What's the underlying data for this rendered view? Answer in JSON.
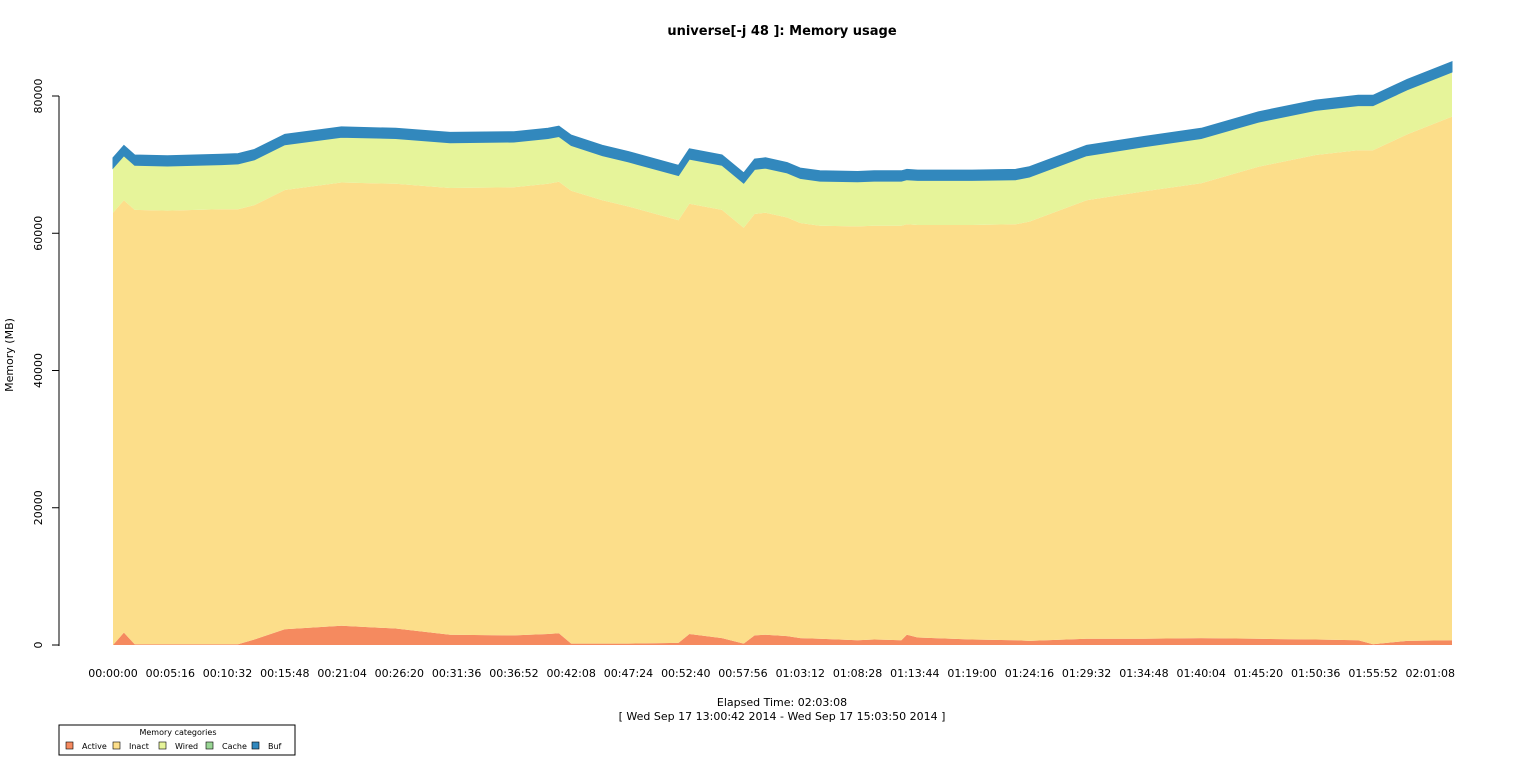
{
  "chart_data": {
    "type": "area",
    "stacked": true,
    "title": "universe[-j 48  ]: Memory usage",
    "ylabel": "Memory (MB)",
    "xlabel": "Elapsed Time: 02:03:08",
    "subtitle": "[ Wed Sep 17 13:00:42 2014 - Wed Sep 17 15:03:50 2014 ]",
    "ylim": [
      0,
      85000
    ],
    "yticks": [
      0,
      20000,
      40000,
      60000,
      80000
    ],
    "x_range_minutes": [
      0,
      123.13
    ],
    "xtick_minutes": [
      0,
      5.27,
      10.53,
      15.8,
      21.07,
      26.33,
      31.6,
      36.87,
      42.13,
      47.4,
      52.67,
      57.93,
      63.2,
      68.47,
      73.73,
      79,
      84.27,
      89.53,
      94.8,
      100.07,
      105.33,
      110.6,
      115.87,
      121.13
    ],
    "xtick_labels": [
      "00:00:00",
      "00:05:16",
      "00:10:32",
      "00:15:48",
      "00:21:04",
      "00:26:20",
      "00:31:36",
      "00:36:52",
      "00:42:08",
      "00:47:24",
      "00:52:40",
      "00:57:56",
      "01:03:12",
      "01:08:28",
      "01:13:44",
      "01:19:00",
      "01:24:16",
      "01:29:32",
      "01:34:48",
      "01:40:04",
      "01:45:20",
      "01:50:36",
      "01:55:52",
      "02:01:08"
    ],
    "x_minutes": [
      0,
      1,
      2,
      5,
      10,
      11.5,
      13,
      15.8,
      21,
      26,
      31,
      36.87,
      40,
      41,
      42.13,
      45,
      47.4,
      52,
      53,
      56,
      58,
      59,
      60,
      62,
      63.2,
      65,
      68.47,
      70,
      72.5,
      73,
      74,
      79,
      83,
      84.27,
      89.53,
      94.8,
      100.07,
      105.33,
      110.6,
      114.5,
      115.87,
      119,
      123.13
    ],
    "series": [
      {
        "name": "Active",
        "color": "#F58A5F",
        "values": [
          0,
          1800,
          100,
          100,
          100,
          100,
          800,
          2300,
          2800,
          2400,
          1500,
          1400,
          1600,
          1700,
          200,
          200,
          200,
          300,
          1600,
          1000,
          200,
          1400,
          1500,
          1300,
          1000,
          900,
          700,
          800,
          700,
          1500,
          1100,
          800,
          700,
          600,
          900,
          900,
          1000,
          900,
          800,
          700,
          100,
          600,
          700
        ]
      },
      {
        "name": "Inact",
        "color": "#FCDE8A",
        "values": [
          63000,
          63000,
          63300,
          63200,
          63400,
          63400,
          63300,
          64000,
          64600,
          64800,
          65100,
          65300,
          65600,
          65800,
          66000,
          64600,
          63700,
          61600,
          62700,
          62400,
          60600,
          61400,
          61500,
          61000,
          60500,
          60200,
          60300,
          60300,
          60400,
          59800,
          60100,
          60400,
          60600,
          61100,
          63900,
          65200,
          66300,
          68800,
          70600,
          71400,
          72000,
          73800,
          76300
        ]
      },
      {
        "name": "Wired",
        "color": "#E6F49A",
        "values": [
          6500,
          6500,
          6500,
          6500,
          6500,
          6600,
          6600,
          6600,
          6600,
          6600,
          6600,
          6600,
          6600,
          6600,
          6600,
          6500,
          6500,
          6500,
          6500,
          6500,
          6500,
          6500,
          6500,
          6500,
          6500,
          6500,
          6500,
          6500,
          6500,
          6500,
          6500,
          6500,
          6500,
          6500,
          6500,
          6500,
          6500,
          6500,
          6500,
          6500,
          6500,
          6500,
          6500
        ]
      },
      {
        "name": "Cache",
        "color": "#99D594",
        "values": [
          0,
          0,
          0,
          0,
          0,
          0,
          0,
          0,
          0,
          0,
          0,
          0,
          0,
          0,
          0,
          0,
          0,
          0,
          0,
          0,
          0,
          0,
          0,
          0,
          0,
          0,
          0,
          0,
          0,
          0,
          0,
          0,
          0,
          0,
          0,
          0,
          0,
          0,
          0,
          0,
          0,
          0,
          0
        ]
      },
      {
        "name": "Buf",
        "color": "#3288BD",
        "values": [
          1500,
          1500,
          1500,
          1500,
          1500,
          1500,
          1500,
          1500,
          1500,
          1500,
          1500,
          1500,
          1500,
          1500,
          1500,
          1500,
          1500,
          1500,
          1500,
          1500,
          1500,
          1500,
          1500,
          1500,
          1500,
          1500,
          1500,
          1500,
          1500,
          1500,
          1500,
          1500,
          1500,
          1500,
          1500,
          1500,
          1500,
          1500,
          1500,
          1500,
          1500,
          1500,
          1500
        ]
      }
    ],
    "legend": {
      "title": "Memory categories",
      "placement": "bottom-left",
      "items": [
        {
          "label": "Active",
          "color": "#F58A5F"
        },
        {
          "label": "Inact",
          "color": "#FCDE8A"
        },
        {
          "label": "Wired",
          "color": "#E6F49A"
        },
        {
          "label": "Cache",
          "color": "#99D594"
        },
        {
          "label": "Buf",
          "color": "#3288BD"
        }
      ]
    }
  }
}
